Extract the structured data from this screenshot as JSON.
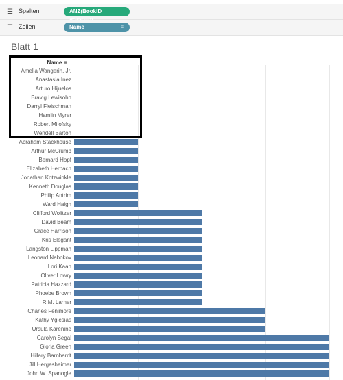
{
  "shelves": {
    "columns": {
      "label": "Spalten",
      "pill": "ANZ(BookID (Edition))"
    },
    "rows": {
      "label": "Zeilen",
      "pill": "Name"
    }
  },
  "sheet": {
    "title": "Blatt 1"
  },
  "header": {
    "name_label": "Name"
  },
  "colors": {
    "bar": "#4e79a7",
    "columns_pill": "#26a97a",
    "rows_pill": "#4e93a8"
  },
  "chart_data": {
    "type": "bar",
    "orientation": "horizontal",
    "categories": [
      "Amelia Wangerin, Jr.",
      "Anastasia Inez",
      "Arturo Hijuelos",
      "Bravig Lewisohn",
      "Darryl Fleischman",
      "Hamlin Myrer",
      "Robert Milofsky",
      "Wendell Barton",
      "Abraham Stackhouse",
      "Arthur McCrumb",
      "Bernard Hopf",
      "Elizabeth Herbach",
      "Jonathan Kotzwinkle",
      "Kenneth Douglas",
      "Philip Antrim",
      "Ward Haigh",
      "Clifford Wolitzer",
      "David Beam",
      "Grace Harrison",
      "Kris Elegant",
      "Langston Lippman",
      "Leonard Nabokov",
      "Lori Kaan",
      "Oliver Lowry",
      "Patricia Hazzard",
      "Phoebe Brown",
      "R.M. Larner",
      "Charles Fenimore",
      "Kathy Yglesias",
      "Ursula Karénine",
      "Carolyn Segal",
      "Gloria Green",
      "Hillary Barnhardt",
      "Jill Hergesheimer",
      "John W. Spanogle"
    ],
    "values": [
      0,
      0,
      0,
      0,
      0,
      0,
      0,
      0,
      1,
      1,
      1,
      1,
      1,
      1,
      1,
      1,
      2,
      2,
      2,
      2,
      2,
      2,
      2,
      2,
      2,
      2,
      2,
      3,
      3,
      3,
      4,
      4,
      4,
      4,
      4
    ],
    "xlim": [
      0,
      4
    ],
    "grid": true,
    "sort": "ascending"
  }
}
